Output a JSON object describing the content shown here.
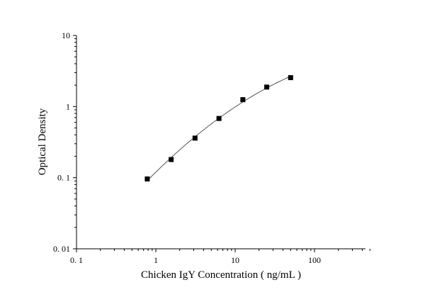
{
  "chart_data": {
    "type": "scatter",
    "title": "",
    "xlabel": "Chicken IgY Concentration ( ng/mL )",
    "ylabel": "Optical Density",
    "x_scale": "log",
    "y_scale": "log",
    "xlim": [
      0.1,
      500
    ],
    "ylim": [
      0.01,
      10
    ],
    "x_ticks": [
      {
        "value": 0.1,
        "label": "0. 1"
      },
      {
        "value": 1,
        "label": "1"
      },
      {
        "value": 10,
        "label": "10"
      },
      {
        "value": 100,
        "label": "100"
      }
    ],
    "y_ticks": [
      {
        "value": 0.01,
        "label": "0. 01"
      },
      {
        "value": 0.1,
        "label": "0. 1"
      },
      {
        "value": 1,
        "label": "1"
      },
      {
        "value": 10,
        "label": "10"
      }
    ],
    "grid": false,
    "fit_curve": true,
    "series": [
      {
        "marker": "square",
        "color": "#000000",
        "points": [
          {
            "x": 0.78,
            "y": 0.096
          },
          {
            "x": 1.56,
            "y": 0.18
          },
          {
            "x": 3.12,
            "y": 0.36
          },
          {
            "x": 6.25,
            "y": 0.68
          },
          {
            "x": 12.5,
            "y": 1.25
          },
          {
            "x": 25,
            "y": 1.88
          },
          {
            "x": 50,
            "y": 2.55
          }
        ]
      }
    ]
  }
}
